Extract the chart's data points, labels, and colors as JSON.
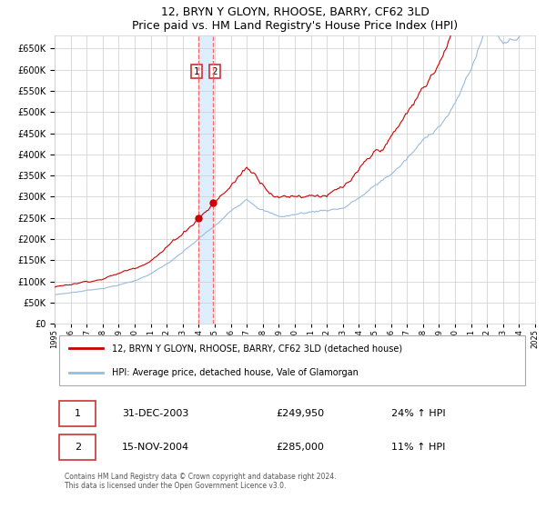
{
  "title": "12, BRYN Y GLOYN, RHOOSE, BARRY, CF62 3LD",
  "subtitle": "Price paid vs. HM Land Registry's House Price Index (HPI)",
  "red_legend": "12, BRYN Y GLOYN, RHOOSE, BARRY, CF62 3LD (detached house)",
  "blue_legend": "HPI: Average price, detached house, Vale of Glamorgan",
  "transaction1_date": "31-DEC-2003",
  "transaction1_price": 249950,
  "transaction1_hpi": "24% ↑ HPI",
  "transaction2_date": "15-NOV-2004",
  "transaction2_price": 285000,
  "transaction2_hpi": "11% ↑ HPI",
  "year_start": 1995,
  "year_end": 2025,
  "ylim_min": 0,
  "ylim_max": 680000,
  "yticks": [
    0,
    50000,
    100000,
    150000,
    200000,
    250000,
    300000,
    350000,
    400000,
    450000,
    500000,
    550000,
    600000,
    650000
  ],
  "vline1_year": 2004.0,
  "vline2_year": 2004.875,
  "background_color": "#ffffff",
  "grid_color": "#cccccc",
  "red_color": "#cc0000",
  "blue_color": "#99bbdd",
  "vline_color": "#ff6666",
  "vspan_color": "#ddeeff",
  "dot_color": "#cc0000",
  "footer": "Contains HM Land Registry data © Crown copyright and database right 2024.\nThis data is licensed under the Open Government Licence v3.0."
}
